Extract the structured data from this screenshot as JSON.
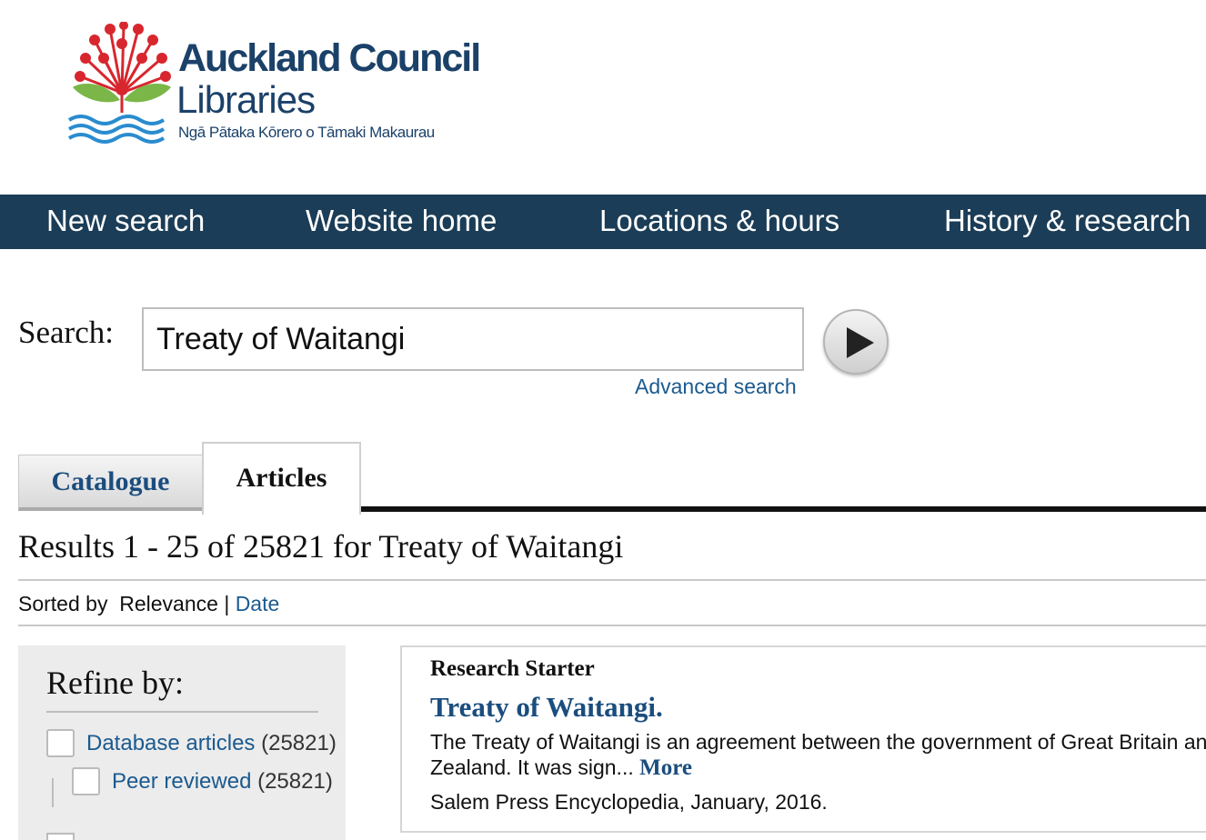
{
  "header": {
    "logo_title": "Auckland Council",
    "logo_subtitle": "Libraries",
    "logo_tagline": "Ngā Pātaka Kōrero o Tāmaki Makaurau",
    "brand_color": "#1b4169"
  },
  "nav": {
    "background": "#1b3d57",
    "items": [
      {
        "label": "New search"
      },
      {
        "label": "Website home"
      },
      {
        "label": "Locations & hours"
      },
      {
        "label": "History & research"
      }
    ]
  },
  "search": {
    "label": "Search:",
    "value": "Treaty of Waitangi",
    "advanced_label": "Advanced search",
    "go_icon": "play-icon"
  },
  "tabs": [
    {
      "label": "Catalogue",
      "active": false
    },
    {
      "label": "Articles",
      "active": true
    }
  ],
  "results": {
    "title": "Results 1 - 25 of 25821 for Treaty of Waitangi",
    "sorted_prefix": "Sorted by",
    "sort_relevance": "Relevance",
    "sort_separator": "|",
    "sort_date": "Date"
  },
  "refine": {
    "title": "Refine by:",
    "facets": [
      {
        "label": "Database articles",
        "count": "(25821)"
      },
      {
        "label": "Peer reviewed",
        "count": "(25821)"
      }
    ]
  },
  "research_starter": {
    "heading": "Research Starter",
    "title": "Treaty of Waitangi.",
    "description_line1": "The Treaty of Waitangi is an agreement between the government of Great Britain and",
    "description_line2": "Zealand. It was sign...",
    "more_label": "More",
    "source": "Salem Press Encyclopedia, January, 2016."
  },
  "colors": {
    "link": "#1b5a8f",
    "heading_link": "#1b4d7e",
    "pohutukawa_red": "#d8262e",
    "leaf_green": "#7ab648",
    "water_blue": "#2a8ccf"
  }
}
